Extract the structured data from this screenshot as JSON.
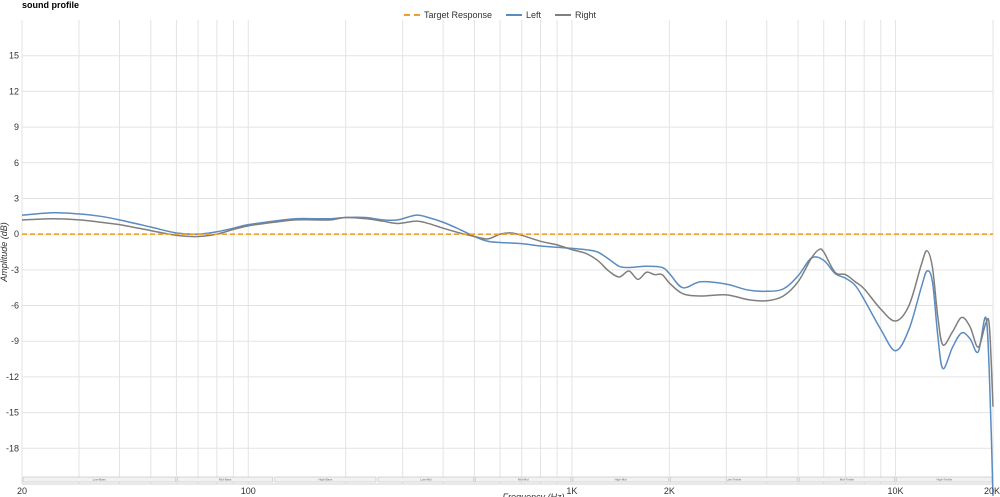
{
  "chart_data": {
    "type": "line",
    "title": "sound profile",
    "xlabel": "Frequency (Hz)",
    "ylabel": "Amplitude (dB)",
    "x_scale": "log",
    "xlim": [
      20,
      20000
    ],
    "ylim": [
      -21,
      18
    ],
    "grid": true,
    "legend_position": "top-center",
    "x_ticks": [
      {
        "value": 20,
        "label": "20"
      },
      {
        "value": 100,
        "label": "100"
      },
      {
        "value": 1000,
        "label": "1K"
      },
      {
        "value": 2000,
        "label": "2K"
      },
      {
        "value": 10000,
        "label": "10K"
      },
      {
        "value": 20000,
        "label": "20K"
      }
    ],
    "y_ticks": [
      {
        "value": 15,
        "label": "15"
      },
      {
        "value": 12,
        "label": "12"
      },
      {
        "value": 9,
        "label": "9"
      },
      {
        "value": 6,
        "label": "6"
      },
      {
        "value": 3,
        "label": "3"
      },
      {
        "value": 0,
        "label": "0"
      },
      {
        "value": -3,
        "label": "-3"
      },
      {
        "value": -6,
        "label": "-6"
      },
      {
        "value": -9,
        "label": "-9"
      },
      {
        "value": -12,
        "label": "-12"
      },
      {
        "value": -15,
        "label": "-15"
      },
      {
        "value": -18,
        "label": "-18"
      }
    ],
    "bands": [
      {
        "label": "Low-Bass",
        "from": 20,
        "to": 60
      },
      {
        "label": "Mid-Bass",
        "from": 60,
        "to": 120
      },
      {
        "label": "High-Bass",
        "from": 120,
        "to": 250
      },
      {
        "label": "Low-Mid",
        "from": 250,
        "to": 500
      },
      {
        "label": "Mid-Mid",
        "from": 500,
        "to": 1000
      },
      {
        "label": "High-Mid",
        "from": 1000,
        "to": 2000
      },
      {
        "label": "Low-Treble",
        "from": 2000,
        "to": 5000
      },
      {
        "label": "Mid-Treble",
        "from": 5000,
        "to": 10000
      },
      {
        "label": "High-Treble",
        "from": 10000,
        "to": 20000
      }
    ],
    "series": [
      {
        "name": "Target Response",
        "color": "#f0a030",
        "dashed": true,
        "points": [
          [
            20,
            0
          ],
          [
            20000,
            0
          ]
        ]
      },
      {
        "name": "Left",
        "color": "#5b8cc0",
        "points": [
          [
            20,
            1.6
          ],
          [
            25,
            1.8
          ],
          [
            30,
            1.7
          ],
          [
            35,
            1.5
          ],
          [
            40,
            1.2
          ],
          [
            50,
            0.6
          ],
          [
            60,
            0.1
          ],
          [
            70,
            0.0
          ],
          [
            80,
            0.2
          ],
          [
            90,
            0.5
          ],
          [
            100,
            0.8
          ],
          [
            120,
            1.1
          ],
          [
            140,
            1.3
          ],
          [
            160,
            1.3
          ],
          [
            180,
            1.3
          ],
          [
            200,
            1.4
          ],
          [
            230,
            1.4
          ],
          [
            260,
            1.2
          ],
          [
            290,
            1.2
          ],
          [
            330,
            1.6
          ],
          [
            360,
            1.4
          ],
          [
            400,
            1.0
          ],
          [
            450,
            0.4
          ],
          [
            500,
            -0.2
          ],
          [
            550,
            -0.6
          ],
          [
            600,
            -0.7
          ],
          [
            700,
            -0.8
          ],
          [
            800,
            -1.0
          ],
          [
            900,
            -1.1
          ],
          [
            1000,
            -1.2
          ],
          [
            1100,
            -1.3
          ],
          [
            1200,
            -1.5
          ],
          [
            1300,
            -2.1
          ],
          [
            1400,
            -2.7
          ],
          [
            1500,
            -2.8
          ],
          [
            1700,
            -2.7
          ],
          [
            1900,
            -2.8
          ],
          [
            2000,
            -3.3
          ],
          [
            2200,
            -4.5
          ],
          [
            2500,
            -4.0
          ],
          [
            3000,
            -4.2
          ],
          [
            3500,
            -4.7
          ],
          [
            4000,
            -4.8
          ],
          [
            4500,
            -4.6
          ],
          [
            5000,
            -3.5
          ],
          [
            5500,
            -2.0
          ],
          [
            6000,
            -2.2
          ],
          [
            6500,
            -3.3
          ],
          [
            7000,
            -3.7
          ],
          [
            7500,
            -4.3
          ],
          [
            8000,
            -5.5
          ],
          [
            9000,
            -8.0
          ],
          [
            10000,
            -9.8
          ],
          [
            11000,
            -8.0
          ],
          [
            12000,
            -4.5
          ],
          [
            12500,
            -3.1
          ],
          [
            13000,
            -4.0
          ],
          [
            13500,
            -8.5
          ],
          [
            14000,
            -11.3
          ],
          [
            15000,
            -9.5
          ],
          [
            16000,
            -8.3
          ],
          [
            17000,
            -8.8
          ],
          [
            18000,
            -9.9
          ],
          [
            19000,
            -7.0
          ],
          [
            19500,
            -12.0
          ],
          [
            20000,
            -22.0
          ]
        ]
      },
      {
        "name": "Right",
        "color": "#7f7f7f",
        "points": [
          [
            20,
            1.2
          ],
          [
            25,
            1.3
          ],
          [
            30,
            1.2
          ],
          [
            35,
            1.0
          ],
          [
            40,
            0.8
          ],
          [
            50,
            0.3
          ],
          [
            60,
            -0.1
          ],
          [
            70,
            -0.2
          ],
          [
            80,
            0.0
          ],
          [
            90,
            0.4
          ],
          [
            100,
            0.7
          ],
          [
            120,
            1.0
          ],
          [
            140,
            1.2
          ],
          [
            160,
            1.2
          ],
          [
            180,
            1.2
          ],
          [
            200,
            1.4
          ],
          [
            230,
            1.3
          ],
          [
            260,
            1.1
          ],
          [
            290,
            0.9
          ],
          [
            330,
            1.1
          ],
          [
            360,
            0.9
          ],
          [
            400,
            0.5
          ],
          [
            450,
            0.1
          ],
          [
            500,
            -0.2
          ],
          [
            550,
            -0.4
          ],
          [
            600,
            0.0
          ],
          [
            650,
            0.1
          ],
          [
            700,
            -0.1
          ],
          [
            800,
            -0.6
          ],
          [
            900,
            -0.9
          ],
          [
            1000,
            -1.3
          ],
          [
            1100,
            -1.6
          ],
          [
            1200,
            -2.2
          ],
          [
            1300,
            -3.1
          ],
          [
            1400,
            -3.6
          ],
          [
            1500,
            -3.1
          ],
          [
            1600,
            -3.8
          ],
          [
            1700,
            -3.2
          ],
          [
            1800,
            -3.4
          ],
          [
            1900,
            -3.4
          ],
          [
            2000,
            -4.1
          ],
          [
            2200,
            -5.0
          ],
          [
            2500,
            -5.2
          ],
          [
            3000,
            -5.1
          ],
          [
            3500,
            -5.5
          ],
          [
            4000,
            -5.6
          ],
          [
            4500,
            -5.2
          ],
          [
            5000,
            -4.0
          ],
          [
            5500,
            -2.0
          ],
          [
            5800,
            -1.3
          ],
          [
            6000,
            -1.5
          ],
          [
            6500,
            -3.2
          ],
          [
            7000,
            -3.4
          ],
          [
            7500,
            -4.0
          ],
          [
            8000,
            -4.6
          ],
          [
            9000,
            -6.3
          ],
          [
            10000,
            -7.3
          ],
          [
            11000,
            -6.0
          ],
          [
            12000,
            -2.6
          ],
          [
            12500,
            -1.4
          ],
          [
            13000,
            -2.8
          ],
          [
            13500,
            -6.9
          ],
          [
            14000,
            -9.3
          ],
          [
            15000,
            -8.2
          ],
          [
            16000,
            -7.0
          ],
          [
            17000,
            -7.8
          ],
          [
            18000,
            -9.5
          ],
          [
            19000,
            -7.5
          ],
          [
            19500,
            -7.8
          ],
          [
            20000,
            -14.5
          ]
        ]
      }
    ]
  }
}
